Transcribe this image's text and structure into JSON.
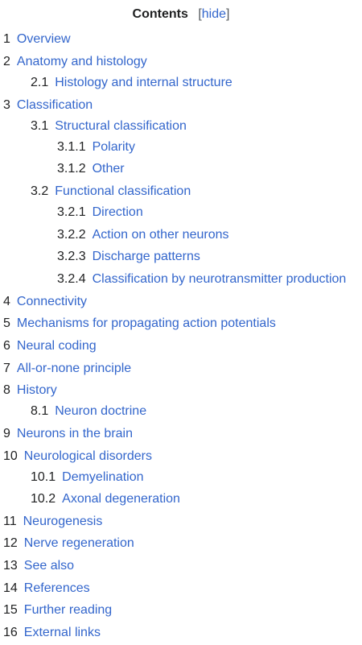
{
  "toc": {
    "title": "Contents",
    "toggle_open": "[",
    "toggle_label": "hide",
    "toggle_close": "]",
    "items": [
      {
        "num": "1",
        "text": "Overview",
        "level": 1
      },
      {
        "num": "2",
        "text": "Anatomy and histology",
        "level": 1
      },
      {
        "num": "2.1",
        "text": "Histology and internal structure",
        "level": 2
      },
      {
        "num": "3",
        "text": "Classification",
        "level": 1
      },
      {
        "num": "3.1",
        "text": "Structural classification",
        "level": 2
      },
      {
        "num": "3.1.1",
        "text": "Polarity",
        "level": 3
      },
      {
        "num": "3.1.2",
        "text": "Other",
        "level": 3
      },
      {
        "num": "3.2",
        "text": "Functional classification",
        "level": 2
      },
      {
        "num": "3.2.1",
        "text": "Direction",
        "level": 3
      },
      {
        "num": "3.2.2",
        "text": "Action on other neurons",
        "level": 3
      },
      {
        "num": "3.2.3",
        "text": "Discharge patterns",
        "level": 3
      },
      {
        "num": "3.2.4",
        "text": "Classification by neurotransmitter production",
        "level": 3
      },
      {
        "num": "4",
        "text": "Connectivity",
        "level": 1
      },
      {
        "num": "5",
        "text": "Mechanisms for propagating action potentials",
        "level": 1
      },
      {
        "num": "6",
        "text": "Neural coding",
        "level": 1
      },
      {
        "num": "7",
        "text": "All-or-none principle",
        "level": 1
      },
      {
        "num": "8",
        "text": "History",
        "level": 1
      },
      {
        "num": "8.1",
        "text": "Neuron doctrine",
        "level": 2
      },
      {
        "num": "9",
        "text": "Neurons in the brain",
        "level": 1
      },
      {
        "num": "10",
        "text": "Neurological disorders",
        "level": 1
      },
      {
        "num": "10.1",
        "text": "Demyelination",
        "level": 2
      },
      {
        "num": "10.2",
        "text": "Axonal degeneration",
        "level": 2
      },
      {
        "num": "11",
        "text": "Neurogenesis",
        "level": 1
      },
      {
        "num": "12",
        "text": "Nerve regeneration",
        "level": 1
      },
      {
        "num": "13",
        "text": "See also",
        "level": 1
      },
      {
        "num": "14",
        "text": "References",
        "level": 1
      },
      {
        "num": "15",
        "text": "Further reading",
        "level": 1
      },
      {
        "num": "16",
        "text": "External links",
        "level": 1
      }
    ]
  }
}
